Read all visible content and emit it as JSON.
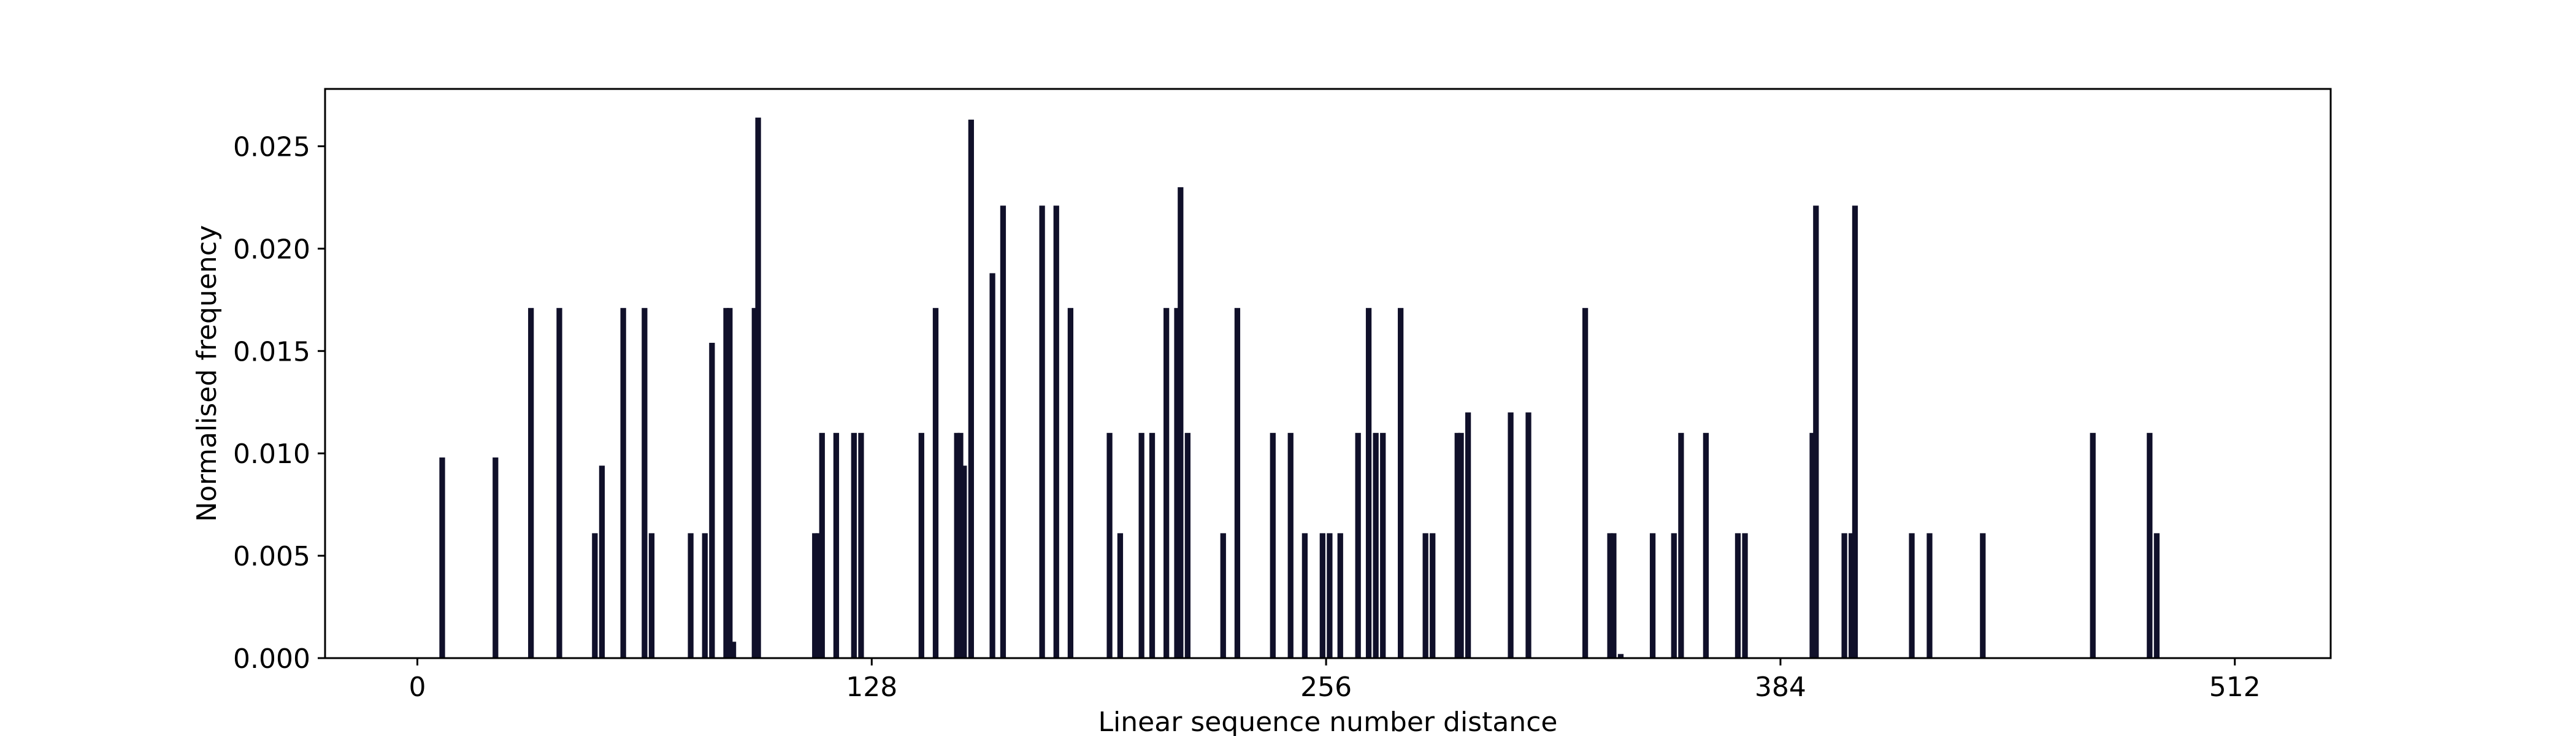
{
  "chart_data": {
    "type": "bar",
    "title": "",
    "xlabel": "Linear sequence number distance",
    "ylabel": "Normalised frequency",
    "xlim": [
      -26,
      539
    ],
    "ylim": [
      0,
      0.0278
    ],
    "x_ticks": [
      0,
      128,
      256,
      384,
      512
    ],
    "y_ticks": [
      0.0,
      0.005,
      0.01,
      0.015,
      0.02,
      0.025
    ],
    "x_tick_labels": [
      "0",
      "128",
      "256",
      "384",
      "512"
    ],
    "y_tick_labels": [
      "0.000",
      "0.005",
      "0.010",
      "0.015",
      "0.020",
      "0.025"
    ],
    "grid": false,
    "colors": {
      "bar": "#10102a",
      "axis": "#000000",
      "background": "#ffffff"
    },
    "bar_width": 1.6,
    "x": [
      7,
      22,
      32,
      40,
      50,
      52,
      58,
      64,
      66,
      77,
      81,
      83,
      87,
      88,
      89,
      95,
      96,
      112,
      113,
      114,
      118,
      123,
      125,
      142,
      146,
      152,
      153,
      154,
      156,
      162,
      165,
      176,
      180,
      184,
      195,
      198,
      204,
      207,
      211,
      214,
      215,
      217,
      227,
      231,
      241,
      246,
      250,
      255,
      257,
      260,
      265,
      268,
      270,
      272,
      277,
      284,
      286,
      293,
      294,
      296,
      308,
      313,
      329,
      336,
      337,
      339,
      348,
      354,
      356,
      363,
      372,
      374,
      393,
      394,
      402,
      404,
      405,
      421,
      426,
      441,
      472,
      488,
      490
    ],
    "values": [
      0.0098,
      0.0098,
      0.0171,
      0.0171,
      0.0061,
      0.0094,
      0.0171,
      0.0171,
      0.0061,
      0.0061,
      0.0061,
      0.0154,
      0.0171,
      0.0171,
      0.0008,
      0.0171,
      0.0264,
      0.0061,
      0.0061,
      0.011,
      0.011,
      0.011,
      0.011,
      0.011,
      0.0171,
      0.011,
      0.011,
      0.0094,
      0.0263,
      0.0188,
      0.0221,
      0.0221,
      0.0221,
      0.0171,
      0.011,
      0.0061,
      0.011,
      0.011,
      0.0171,
      0.0171,
      0.023,
      0.011,
      0.0061,
      0.0171,
      0.011,
      0.011,
      0.0061,
      0.0061,
      0.0061,
      0.0061,
      0.011,
      0.0171,
      0.011,
      0.011,
      0.0171,
      0.0061,
      0.0061,
      0.011,
      0.011,
      0.012,
      0.012,
      0.012,
      0.0171,
      0.0061,
      0.0061,
      0.0002,
      0.0061,
      0.0061,
      0.011,
      0.011,
      0.0061,
      0.0061,
      0.011,
      0.0221,
      0.0061,
      0.0061,
      0.0221,
      0.0061,
      0.0061,
      0.0061,
      0.011,
      0.011,
      0.0061
    ]
  }
}
